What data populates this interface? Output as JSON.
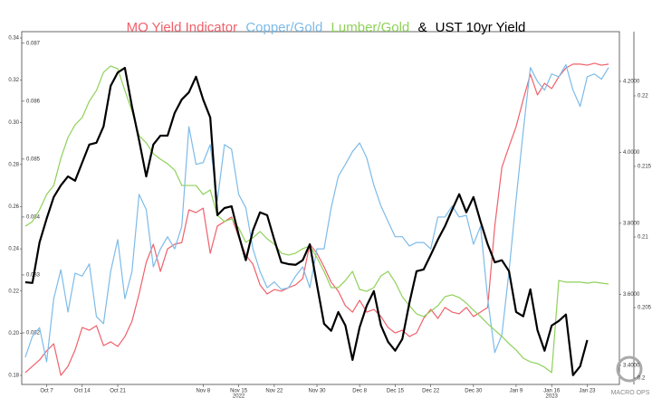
{
  "chart_data": {
    "type": "line",
    "title_connector": "&",
    "watermark": "MACRO OPS",
    "categories": [
      null,
      null,
      null,
      "Oct 7",
      null,
      null,
      null,
      null,
      "Oct 14",
      null,
      null,
      null,
      null,
      "Oct 21",
      null,
      null,
      null,
      null,
      null,
      null,
      null,
      null,
      null,
      null,
      null,
      "Nov 8",
      null,
      null,
      null,
      null,
      "Nov 15",
      null,
      null,
      null,
      null,
      "Nov 22",
      null,
      null,
      null,
      null,
      null,
      "Nov 30",
      null,
      null,
      null,
      null,
      null,
      "Dec 8",
      null,
      null,
      null,
      null,
      "Dec 15",
      null,
      null,
      null,
      null,
      "Dec 22",
      null,
      null,
      null,
      null,
      null,
      "Dec 30",
      null,
      null,
      null,
      null,
      null,
      "Jan 9",
      null,
      null,
      null,
      null,
      "Jan 16",
      null,
      null,
      null,
      null,
      "Jan 23",
      null,
      null,
      null
    ],
    "category_years": [
      null,
      null,
      null,
      null,
      null,
      null,
      null,
      null,
      null,
      null,
      null,
      null,
      null,
      null,
      null,
      null,
      null,
      null,
      null,
      null,
      null,
      null,
      null,
      null,
      null,
      null,
      null,
      null,
      null,
      null,
      "2022",
      null,
      null,
      null,
      null,
      null,
      null,
      null,
      null,
      null,
      null,
      null,
      null,
      null,
      null,
      null,
      null,
      null,
      null,
      null,
      null,
      null,
      null,
      null,
      null,
      null,
      null,
      null,
      null,
      null,
      null,
      null,
      null,
      null,
      null,
      null,
      null,
      null,
      null,
      null,
      null,
      null,
      null,
      null,
      "2023",
      null,
      null,
      null,
      null,
      null,
      null,
      null,
      null
    ],
    "ylim": [
      0.1757,
      0.343
    ],
    "yticks": [
      0.18,
      {
        "value": 0.2,
        "label": "0.20"
      },
      0.22,
      0.24,
      0.26,
      0.28,
      {
        "value": 0.3,
        "label": "0.30"
      },
      0.32,
      0.34
    ],
    "y2lim": [
      3.346,
      4.34
    ],
    "y2ticks": [
      {
        "value": 3.4,
        "label": "3.4000"
      },
      {
        "value": 3.6,
        "label": "3.6000"
      },
      {
        "value": 3.8,
        "label": "3.8000"
      },
      {
        "value": 4.0,
        "label": "4.0000"
      },
      {
        "value": 4.2,
        "label": "4.2000"
      }
    ],
    "y3lim": [
      0.08111,
      0.0872
    ],
    "y3ticks": [
      0.082,
      0.083,
      0.084,
      0.085,
      0.086,
      0.087
    ],
    "y4lim": [
      0.19955,
      0.22455
    ],
    "y4ticks": [
      0.2,
      0.205,
      0.21,
      0.215,
      0.22
    ],
    "grid": false,
    "series": [
      {
        "name": "MO Yield Indicator",
        "color": "#f0606a",
        "axis": "y",
        "values": [
          0.1813,
          0.1843,
          0.1873,
          0.1916,
          0.195,
          0.18,
          0.1843,
          0.192,
          0.2027,
          0.2014,
          0.2036,
          0.1941,
          0.1959,
          0.1937,
          0.1984,
          0.2057,
          0.2186,
          0.2336,
          0.2422,
          0.2293,
          0.24,
          0.2422,
          0.243,
          0.2585,
          0.2572,
          0.2593,
          0.2379,
          0.2508,
          0.2529,
          0.2551,
          0.2456,
          0.237,
          0.2327,
          0.2229,
          0.2186,
          0.2207,
          0.2199,
          0.2216,
          0.2229,
          0.2259,
          0.2422,
          0.2379,
          0.2315,
          0.2242,
          0.2199,
          0.213,
          0.21,
          0.2156,
          0.21,
          0.2113,
          0.2079,
          0.2027,
          0.2001,
          0.2014,
          0.1984,
          0.2001,
          0.207,
          0.2113,
          0.207,
          0.2122,
          0.21,
          0.2092,
          0.2122,
          0.2079,
          0.21,
          0.2122,
          0.2508,
          0.2787,
          0.2885,
          0.298,
          0.3108,
          0.3228,
          0.313,
          0.3185,
          0.316,
          0.3216,
          0.3258,
          0.3276,
          0.3276,
          0.3271,
          0.328,
          0.3271,
          0.3276
        ]
      },
      {
        "name": "Copper/Gold",
        "color": "#7dbbe8",
        "axis": "y3",
        "values": [
          0.08158,
          0.08194,
          0.08209,
          0.0815,
          0.08259,
          0.08309,
          0.08236,
          0.08303,
          0.08298,
          0.08319,
          0.08228,
          0.08216,
          0.08306,
          0.08361,
          0.08259,
          0.08306,
          0.08439,
          0.08413,
          0.08314,
          0.08345,
          0.08366,
          0.08345,
          0.08384,
          0.08556,
          0.08491,
          0.08494,
          0.08525,
          0.08428,
          0.08525,
          0.08517,
          0.08439,
          0.08416,
          0.08345,
          0.08306,
          0.08278,
          0.08288,
          0.08275,
          0.08278,
          0.08298,
          0.08314,
          0.08278,
          0.08345,
          0.08345,
          0.08416,
          0.0847,
          0.08491,
          0.08513,
          0.08528,
          0.08502,
          0.08455,
          0.08419,
          0.08392,
          0.08366,
          0.08366,
          0.0835,
          0.08356,
          0.08356,
          0.08345,
          0.084,
          0.084,
          0.08419,
          0.084,
          0.08403,
          0.08353,
          0.08384,
          0.08259,
          0.08166,
          0.08197,
          0.08306,
          0.08431,
          0.08548,
          0.08658,
          0.08634,
          0.08619,
          0.08647,
          0.08642,
          0.08663,
          0.08619,
          0.08591,
          0.08642,
          0.08647,
          0.08638,
          0.08658
        ]
      },
      {
        "name": "Lumber/Gold",
        "color": "#8fd15a",
        "axis": "y4",
        "values": [
          0.21077,
          0.21109,
          0.21192,
          0.21301,
          0.21365,
          0.21558,
          0.21705,
          0.21795,
          0.21846,
          0.21962,
          0.22038,
          0.22167,
          0.22212,
          0.22192,
          0.22038,
          0.21891,
          0.21718,
          0.21667,
          0.2159,
          0.21551,
          0.21519,
          0.21474,
          0.21365,
          0.21365,
          0.21365,
          0.21301,
          0.21333,
          0.21154,
          0.21109,
          0.21128,
          0.21064,
          0.20962,
          0.20994,
          0.21039,
          0.20987,
          0.20949,
          0.20885,
          0.20872,
          0.20885,
          0.20917,
          0.20936,
          0.20853,
          0.20756,
          0.20641,
          0.20641,
          0.20692,
          0.20756,
          0.20628,
          0.20615,
          0.20641,
          0.20724,
          0.20756,
          0.2068,
          0.20577,
          0.20513,
          0.20455,
          0.20436,
          0.20474,
          0.20513,
          0.20577,
          0.2059,
          0.20571,
          0.20532,
          0.20481,
          0.20436,
          0.20385,
          0.2034,
          0.20295,
          0.20244,
          0.20199,
          0.20141,
          0.20115,
          0.20103,
          0.20077,
          0.20039,
          0.20692,
          0.2068,
          0.2068,
          0.2068,
          0.20673,
          0.2068,
          0.20673,
          0.20667
        ]
      },
      {
        "name": "UST 10yr Yield",
        "color": "#000000",
        "axis": "y2",
        "values": [
          3.634,
          3.632,
          3.746,
          3.813,
          3.874,
          3.907,
          3.932,
          3.92,
          3.971,
          4.022,
          4.027,
          4.073,
          4.187,
          4.225,
          4.238,
          4.129,
          4.034,
          3.932,
          4.022,
          4.047,
          4.047,
          4.111,
          4.149,
          4.169,
          4.213,
          4.149,
          4.098,
          3.823,
          3.843,
          3.848,
          3.767,
          3.696,
          3.78,
          3.831,
          3.823,
          3.754,
          3.69,
          3.685,
          3.683,
          3.696,
          3.741,
          3.627,
          3.517,
          3.497,
          3.55,
          3.512,
          3.415,
          3.507,
          3.568,
          3.609,
          3.512,
          3.466,
          3.441,
          3.474,
          3.576,
          3.665,
          3.67,
          3.711,
          3.754,
          3.792,
          3.838,
          3.882,
          3.831,
          3.874,
          3.805,
          3.741,
          3.69,
          3.696,
          3.665,
          3.55,
          3.538,
          3.614,
          3.499,
          3.441,
          3.512,
          3.525,
          3.543,
          3.372,
          3.397,
          3.471,
          null,
          null,
          null
        ]
      }
    ]
  }
}
